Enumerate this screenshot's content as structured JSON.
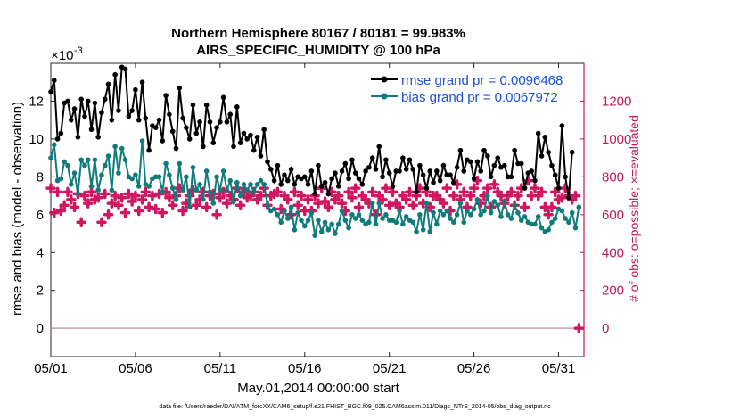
{
  "chart_data": {
    "type": "line",
    "title": "Northern Hemisphere 80167 / 80181 = 99.983%",
    "subtitle": "AIRS_SPECIFIC_HUMIDITY @ 100 hPa",
    "xlabel": "May.01,2014 00:00:00 start",
    "ylabel": "rmse and bias (model - observation)",
    "y2label": "# of obs: o=possible; ×=evaluated",
    "exponent_label": "×10",
    "exponent_value": "-3",
    "x_ticks": [
      "05/01",
      "05/06",
      "05/11",
      "05/16",
      "05/21",
      "05/26",
      "05/31"
    ],
    "x_tick_values": [
      1,
      6,
      11,
      16,
      21,
      26,
      31
    ],
    "xlim": [
      1,
      32.5
    ],
    "y_ticks": [
      "0",
      "2",
      "4",
      "6",
      "8",
      "10",
      "12"
    ],
    "y_tick_values": [
      0,
      2,
      4,
      6,
      8,
      10,
      12
    ],
    "ylim": [
      -1.5,
      14
    ],
    "y2_ticks": [
      "0",
      "200",
      "400",
      "600",
      "800",
      "1000",
      "1200"
    ],
    "y2_tick_values": [
      0,
      200,
      400,
      600,
      800,
      1000,
      1200
    ],
    "y2lim": [
      -150,
      1400
    ],
    "footer": "data file: /Users/raeder/DAI/ATM_forcXX/CAM6_setup/f.e21.FHIST_BGC.f09_025.CAM6assim.011/Diags_NTrS_2014-05/obs_diag_output.nc",
    "series": [
      {
        "name": "rmse grand pr = 0.0096468",
        "color": "#000000",
        "axis": "left",
        "values": [
          12.5,
          13.1,
          10.0,
          10.3,
          11.9,
          12.0,
          11.0,
          11.6,
          10.1,
          12.1,
          11.2,
          12.0,
          10.5,
          11.9,
          10.1,
          11.4,
          12.1,
          12.9,
          11.0,
          13.4,
          11.5,
          13.8,
          13.7,
          11.2,
          11.5,
          12.6,
          11.0,
          13.0,
          11.1,
          9.4,
          10.7,
          10.6,
          11.0,
          9.9,
          12.3,
          11.3,
          10.4,
          9.5,
          12.7,
          11.1,
          10.6,
          10.0,
          11.8,
          10.3,
          10.9,
          9.6,
          11.8,
          10.9,
          9.8,
          10.6,
          10.9,
          12.2,
          10.9,
          11.3,
          9.6,
          11.7,
          9.8,
          10.3,
          10.0,
          10.2,
          9.4,
          10.1,
          9.1,
          10.5,
          8.8,
          8.4,
          7.8,
          8.6,
          7.6,
          8.1,
          7.8,
          8.4,
          7.6,
          8.0,
          7.9,
          8.0,
          7.6,
          8.3,
          7.1,
          8.6,
          7.5,
          7.7,
          7.1,
          7.9,
          8.2,
          7.5,
          8.3,
          8.7,
          7.9,
          8.9,
          8.2,
          7.9,
          7.6,
          8.3,
          8.5,
          9.0,
          8.4,
          9.6,
          8.0,
          8.9,
          8.2,
          7.5,
          8.3,
          8.3,
          9.0,
          8.4,
          8.9,
          8.4,
          7.2,
          8.6,
          8.1,
          7.4,
          8.3,
          7.7,
          8.3,
          7.8,
          8.6,
          8.1,
          8.1,
          7.7,
          8.5,
          9.4,
          8.3,
          8.9,
          8.8,
          7.9,
          8.8,
          8.3,
          9.4,
          9.1,
          8.0,
          8.6,
          9.0,
          8.5,
          8.6,
          8.0,
          8.0,
          9.4,
          8.7,
          8.7,
          7.4,
          8.2,
          8.3,
          7.8,
          10.3,
          9.1,
          10.1,
          9.3,
          8.6,
          8.1,
          7.4,
          10.7,
          8.0,
          6.9,
          9.3
        ],
        "x_start": 1,
        "x_step": 0.2
      },
      {
        "name": "bias grand pr = 0.0067972",
        "color": "#0f7b7b",
        "axis": "left",
        "values": [
          9.0,
          9.7,
          7.8,
          7.9,
          8.8,
          8.6,
          7.6,
          8.2,
          7.1,
          8.9,
          8.6,
          8.9,
          7.5,
          8.9,
          7.3,
          8.1,
          8.6,
          9.1,
          7.3,
          9.6,
          8.2,
          9.5,
          8.9,
          8.0,
          7.9,
          8.1,
          7.5,
          9.9,
          7.6,
          7.5,
          7.9,
          8.0,
          8.0,
          7.2,
          8.7,
          8.1,
          7.4,
          6.8,
          8.7,
          7.3,
          8.0,
          6.4,
          8.5,
          7.3,
          7.6,
          6.8,
          8.3,
          7.2,
          6.6,
          8.0,
          7.3,
          8.3,
          7.3,
          7.8,
          6.7,
          7.7,
          7.0,
          7.6,
          7.3,
          7.6,
          7.2,
          7.6,
          7.8,
          7.6,
          6.5,
          6.2,
          6.3,
          6.0,
          5.6,
          6.2,
          5.8,
          6.4,
          5.2,
          6.1,
          5.7,
          5.4,
          5.7,
          6.1,
          4.9,
          5.7,
          5.1,
          5.6,
          5.2,
          5.5,
          5.0,
          5.5,
          6.2,
          5.7,
          5.3,
          6.0,
          5.8,
          6.0,
          5.7,
          5.5,
          5.6,
          6.6,
          5.5,
          6.6,
          5.8,
          6.0,
          5.7,
          5.7,
          5.6,
          6.2,
          5.5,
          5.9,
          5.7,
          5.6,
          5.1,
          6.0,
          5.2,
          6.6,
          5.1,
          6.1,
          5.5,
          6.2,
          6.0,
          6.2,
          5.8,
          5.6,
          6.0,
          6.6,
          5.6,
          6.2,
          6.0,
          6.3,
          6.8,
          6.0,
          6.2,
          7.0,
          6.1,
          6.7,
          6.5,
          5.9,
          6.7,
          6.0,
          5.8,
          6.5,
          6.1,
          5.7,
          5.9,
          5.6,
          5.5,
          5.5,
          5.9,
          5.3,
          5.1,
          5.2,
          5.6,
          5.8,
          6.3,
          6.2,
          5.8,
          5.6,
          6.1,
          5.3,
          6.4
        ],
        "x_start": 1,
        "x_step": 0.2
      },
      {
        "name": "possible",
        "color": "#d01660",
        "axis": "right",
        "marker": "o",
        "values": [
          740,
          610,
          720,
          620,
          650,
          720,
          680,
          640,
          710,
          560,
          700,
          660,
          720,
          680,
          690,
          560,
          710,
          600,
          660,
          700,
          650,
          690,
          610,
          710,
          670,
          700,
          620,
          680,
          720,
          640,
          700,
          630,
          710,
          610,
          720,
          690,
          650,
          700,
          740,
          620,
          660,
          700,
          730,
          650,
          680,
          720,
          640,
          700,
          710,
          600,
          690,
          720,
          660,
          700,
          680,
          740,
          650,
          720,
          690,
          700,
          720,
          680,
          700,
          740,
          650,
          700,
          710,
          720,
          630,
          700,
          680,
          600,
          720,
          650,
          700,
          620,
          680,
          620,
          700,
          660,
          740,
          670,
          640,
          720,
          680,
          700,
          660,
          620,
          720,
          690,
          740,
          640,
          700,
          680,
          660,
          720,
          600,
          700,
          680,
          740,
          650,
          720,
          660,
          640,
          700,
          680,
          720,
          650,
          700,
          740,
          660,
          720,
          640,
          700,
          700,
          680,
          660,
          740,
          620,
          700,
          760,
          680,
          720,
          640,
          700,
          740,
          780,
          660,
          700,
          740,
          640,
          760,
          720,
          700,
          660,
          700,
          720,
          650,
          700,
          740,
          640,
          780,
          700,
          740,
          700,
          720,
          640,
          600,
          640,
          720,
          680,
          690,
          740,
          700,
          680,
          700,
          0
        ],
        "x_start": 1,
        "x_step": 0.2
      }
    ]
  }
}
